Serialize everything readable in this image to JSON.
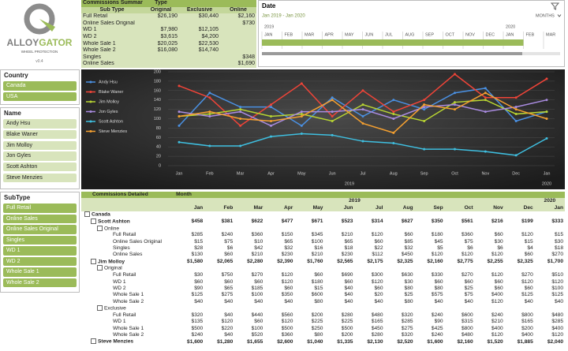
{
  "logo": {
    "brand_left": "ALLOY",
    "brand_right": "GATOR",
    "tagline": "WHEEL PROTECTION",
    "version": "v0.4"
  },
  "summary": {
    "title": "Commissions Summary",
    "row_header": "Sub Type",
    "col_header": "Type",
    "columns": [
      "Original",
      "Exclusive",
      "Online"
    ],
    "rows": [
      {
        "label": "Full Retail",
        "cells": [
          "$26,190",
          "$30,440",
          "$2,160"
        ]
      },
      {
        "label": "Online Sales Original",
        "cells": [
          null,
          null,
          "$730"
        ]
      },
      {
        "label": "WD 1",
        "cells": [
          "$7,980",
          "$12,105",
          null
        ]
      },
      {
        "label": "WD 2",
        "cells": [
          "$3,615",
          "$4,200",
          null
        ]
      },
      {
        "label": "Whole Sale 1",
        "cells": [
          "$20,025",
          "$22,530",
          null
        ]
      },
      {
        "label": "Whole Sale 2",
        "cells": [
          "$16,080",
          "$14,740",
          null
        ]
      },
      {
        "label": "Singles",
        "cells": [
          null,
          null,
          "$348"
        ]
      },
      {
        "label": "Online Sales",
        "cells": [
          null,
          null,
          "$1,690"
        ]
      }
    ]
  },
  "date_slicer": {
    "title": "Date",
    "range": "Jan 2019 - Jan 2020",
    "level": "MONTHS",
    "years": [
      "2019",
      "2020"
    ],
    "months": [
      "JAN",
      "FEB",
      "MAR",
      "APR",
      "MAY",
      "JUN",
      "JUL",
      "AUG",
      "SEP",
      "OCT",
      "NOV",
      "DEC",
      "JAN",
      "FEB",
      "MAR"
    ]
  },
  "slicers": [
    {
      "title": "Country",
      "items": [
        "Canada",
        "USA"
      ]
    },
    {
      "title": "Name",
      "items": [
        "Andy Hsu",
        "Blake Waner",
        "Jim Molloy",
        "Jon Gyles",
        "Scott Ashton",
        "Steve Menzies"
      ]
    },
    {
      "title": "SubType",
      "items": [
        "Full Retail",
        "Online Sales",
        "Online Sales Original",
        "Singles",
        "WD 1",
        "WD 2",
        "Whole Sale 1",
        "Whole Sale 2"
      ]
    }
  ],
  "chart_data": {
    "type": "line",
    "categories": [
      "Jan",
      "Feb",
      "Mar",
      "Apr",
      "May",
      "Jun",
      "Jul",
      "Aug",
      "Sep",
      "Oct",
      "Nov",
      "Dec",
      "Jan"
    ],
    "year_labels": [
      "2019",
      "2020"
    ],
    "ylim": [
      0,
      200
    ],
    "yticks": [
      0,
      20,
      40,
      60,
      80,
      100,
      120,
      140,
      160,
      180,
      200
    ],
    "grid": true,
    "series": [
      {
        "name": "Andy Hsu",
        "color": "#4a90e2",
        "values": [
          85,
          155,
          125,
          125,
          85,
          145,
          105,
          140,
          120,
          155,
          165,
          95,
          115
        ]
      },
      {
        "name": "Blake Waner",
        "color": "#f04438",
        "values": [
          170,
          145,
          85,
          130,
          175,
          105,
          160,
          115,
          140,
          195,
          145,
          145,
          185
        ]
      },
      {
        "name": "Jim Molloy",
        "color": "#b8d432",
        "values": [
          105,
          110,
          120,
          105,
          110,
          95,
          130,
          110,
          95,
          135,
          140,
          110,
          115
        ]
      },
      {
        "name": "Jon Gyles",
        "color": "#a98be0",
        "values": [
          115,
          105,
          115,
          85,
          115,
          115,
          120,
          100,
          125,
          130,
          115,
          125,
          140
        ]
      },
      {
        "name": "Scott Ashton",
        "color": "#3fbfe0",
        "values": [
          50,
          42,
          42,
          62,
          68,
          65,
          52,
          48,
          35,
          35,
          30,
          22,
          58
        ]
      },
      {
        "name": "Steve Menzies",
        "color": "#f5a030",
        "values": [
          105,
          115,
          100,
          95,
          105,
          140,
          90,
          70,
          130,
          120,
          155,
          120,
          100
        ]
      }
    ]
  },
  "detail": {
    "title": "Commissions Detailed",
    "column_field": "Month",
    "years": [
      "2019",
      "2020"
    ],
    "months": [
      "Jan",
      "Feb",
      "Mar",
      "Apr",
      "May",
      "Jun",
      "Jul",
      "Aug",
      "Sep",
      "Oct",
      "Nov",
      "Dec",
      "Jan"
    ],
    "rows": [
      {
        "label": "Canada",
        "level": 0
      },
      {
        "label": "Scott Ashton",
        "level": 1,
        "values": [
          "$458",
          "$381",
          "$622",
          "$477",
          "$671",
          "$523",
          "$314",
          "$627",
          "$350",
          "$561",
          "$216",
          "$199",
          "$333"
        ]
      },
      {
        "label": "Online",
        "level": 2
      },
      {
        "label": "Full Retail",
        "level": 3,
        "values": [
          "$285",
          "$240",
          "$360",
          "$150",
          "$345",
          "$210",
          "$120",
          "$60",
          "$180",
          "$360",
          "$60",
          "$120",
          "$15"
        ]
      },
      {
        "label": "Online Sales Original",
        "level": 3,
        "values": [
          "$15",
          "$75",
          "$10",
          "$65",
          "$100",
          "$65",
          "$60",
          "$85",
          "$45",
          "$75",
          "$30",
          "$15",
          "$30"
        ]
      },
      {
        "label": "Singles",
        "level": 3,
        "values": [
          "$28",
          "$6",
          "$42",
          "$32",
          "$16",
          "$18",
          "$22",
          "$32",
          "$5",
          "$6",
          "$6",
          "$4",
          "$18"
        ]
      },
      {
        "label": "Online Sales",
        "level": 3,
        "values": [
          "$130",
          "$60",
          "$210",
          "$230",
          "$210",
          "$230",
          "$112",
          "$450",
          "$120",
          "$120",
          "$120",
          "$60",
          "$270"
        ]
      },
      {
        "label": "Jim Molloy",
        "level": 1,
        "values": [
          "$1,580",
          "$2,065",
          "$2,280",
          "$2,390",
          "$1,760",
          "$2,565",
          "$2,175",
          "$2,325",
          "$2,160",
          "$2,775",
          "$2,255",
          "$2,325",
          "$1,700"
        ]
      },
      {
        "label": "Original",
        "level": 2
      },
      {
        "label": "Full Retail",
        "level": 3,
        "values": [
          "$30",
          "$750",
          "$270",
          "$120",
          "$60",
          "$690",
          "$300",
          "$630",
          "$330",
          "$270",
          "$120",
          "$270",
          "$510"
        ]
      },
      {
        "label": "WD 1",
        "level": 3,
        "values": [
          "$60",
          "$60",
          "$60",
          "$120",
          "$180",
          "$60",
          "$120",
          "$30",
          "$60",
          "$60",
          "$60",
          "$120",
          "$120"
        ]
      },
      {
        "label": "WD 2",
        "level": 3,
        "values": [
          "$90",
          "$65",
          "$185",
          "$60",
          "$15",
          "$40",
          "$60",
          "$80",
          "$80",
          "$25",
          "$60",
          "$60",
          "$100"
        ]
      },
      {
        "label": "Whole Sale 1",
        "level": 3,
        "values": [
          "$125",
          "$275",
          "$100",
          "$350",
          "$600",
          "$40",
          "$20",
          "$25",
          "$575",
          "$75",
          "$400",
          "$125",
          "$125"
        ]
      },
      {
        "label": "Whole Sale 2",
        "level": 3,
        "values": [
          "$40",
          "$40",
          "$40",
          "$40",
          "$80",
          "$40",
          "$40",
          "$80",
          "$40",
          "$40",
          "$120",
          "$40",
          "$40"
        ]
      },
      {
        "label": "Exclusive",
        "level": 2
      },
      {
        "label": "Full Retail",
        "level": 3,
        "values": [
          "$320",
          "$40",
          "$440",
          "$560",
          "$200",
          "$280",
          "$480",
          "$320",
          "$240",
          "$600",
          "$240",
          "$800",
          "$480"
        ]
      },
      {
        "label": "WD 1",
        "level": 3,
        "values": [
          "$135",
          "$120",
          "$60",
          "$120",
          "$225",
          "$225",
          "$165",
          "$285",
          "$90",
          "$315",
          "$210",
          "$165",
          "$285"
        ]
      },
      {
        "label": "Whole Sale 1",
        "level": 3,
        "values": [
          "$500",
          "$220",
          "$100",
          "$500",
          "$250",
          "$500",
          "$450",
          "$275",
          "$425",
          "$800",
          "$400",
          "$200",
          "$400"
        ]
      },
      {
        "label": "Whole Sale 2",
        "level": 3,
        "values": [
          "$240",
          "$40",
          "$520",
          "$360",
          "$80",
          "$200",
          "$280",
          "$320",
          "$240",
          "$480",
          "$120",
          "$400",
          "$120"
        ]
      },
      {
        "label": "Steve Menzies",
        "level": 1,
        "values": [
          "$1,600",
          "$1,280",
          "$1,655",
          "$2,600",
          "$1,040",
          "$1,335",
          "$2,130",
          "$2,520",
          "$1,600",
          "$2,160",
          "$1,520",
          "$1,885",
          "$2,040"
        ]
      }
    ]
  }
}
